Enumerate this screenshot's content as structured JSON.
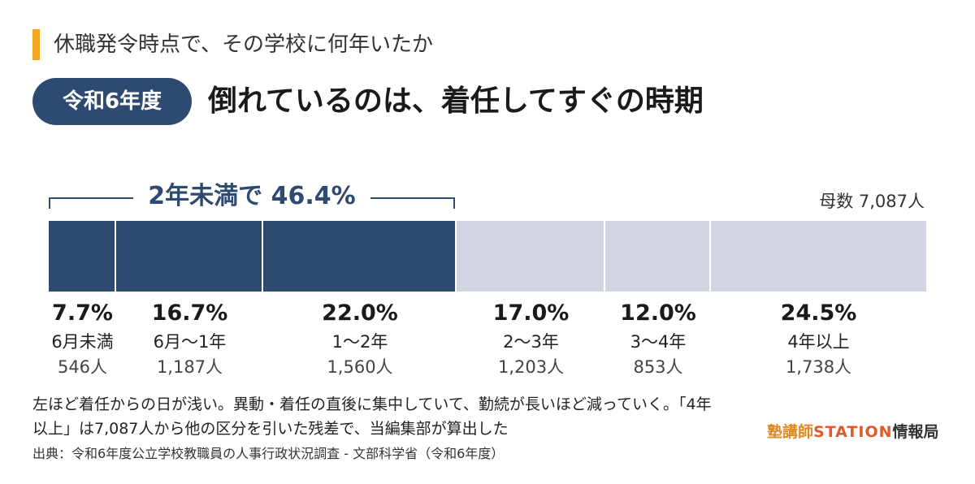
{
  "subtitle": "休職発令時点で、その学校に何年いたか",
  "badge": "令和6年度",
  "headline": "倒れているのは、着任してすぐの時期",
  "bracket_label": "2年未満で 46.4%",
  "total": "母数 7,087人",
  "colors": {
    "highlight": "#2f4a70",
    "rest": "#d1d6e2",
    "accent": "#f5a623"
  },
  "chart_data": {
    "type": "bar",
    "orientation": "horizontal-stacked-100",
    "categories": [
      "6月未満",
      "6月〜1年",
      "1〜2年",
      "2〜3年",
      "3〜4年",
      "4年以上"
    ],
    "values": [
      7.7,
      16.7,
      22.0,
      17.0,
      12.0,
      24.5
    ],
    "value_labels": [
      "7.7%",
      "16.7%",
      "22.0%",
      "17.0%",
      "12.0%",
      "24.5%"
    ],
    "counts": [
      "546人",
      "1,187人",
      "1,560人",
      "1,203人",
      "853人",
      "1,738人"
    ],
    "highlighted": [
      true,
      true,
      true,
      false,
      false,
      false
    ]
  },
  "note": "左ほど着任からの日が浅い。異動・着任の直後に集中していて、勤続が長いほど減っていく。「4年以上」は7,087人から他の区分を引いた残差で、当編集部が算出した",
  "source": "出典：令和6年度公立学校教職員の人事行政状況調査 - 文部科学省（令和6年度）",
  "logo": {
    "part1": "塾講師",
    "part2": "STATION",
    "part3": "情報局"
  }
}
